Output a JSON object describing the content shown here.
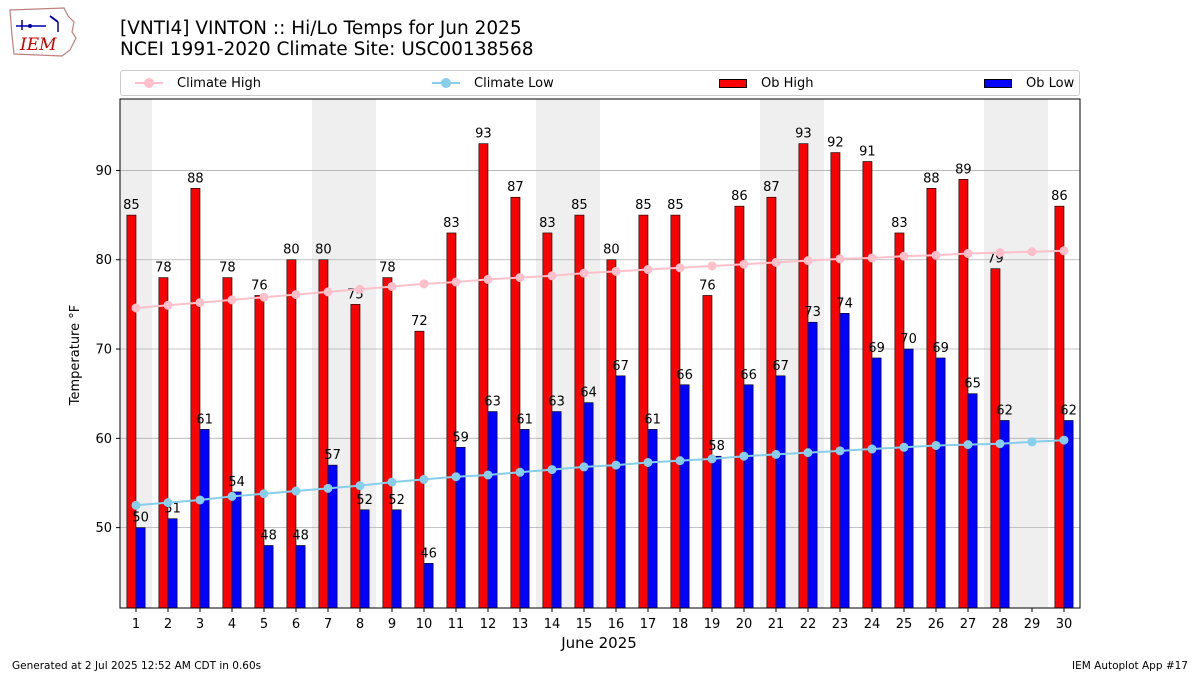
{
  "header": {
    "title_line1": "[VNTI4] VINTON :: Hi/Lo Temps for Jun 2025",
    "title_line2": "NCEI 1991-2020 Climate Site: USC00138568"
  },
  "logo": {
    "text": "IEM"
  },
  "footer": {
    "left": "Generated at 2 Jul 2025 12:52 AM CDT in 0.60s",
    "right": "IEM Autoplot App #17"
  },
  "colors": {
    "ob_high": "#ff0000",
    "ob_low": "#0000ff",
    "climate_high": "#ffc0cb",
    "climate_low": "#87ceeb",
    "weekend_shade": "#efefef",
    "grid": "#b0b0b0"
  },
  "chart_data": {
    "type": "bar",
    "xlabel": "June 2025",
    "ylabel": "Temperature $^\\circ$F",
    "ylim": [
      41,
      98
    ],
    "yticks": [
      50,
      60,
      70,
      80,
      90
    ],
    "grid": "horizontal",
    "legend_position": "top",
    "categories": [
      1,
      2,
      3,
      4,
      5,
      6,
      7,
      8,
      9,
      10,
      11,
      12,
      13,
      14,
      15,
      16,
      17,
      18,
      19,
      20,
      21,
      22,
      23,
      24,
      25,
      26,
      27,
      28,
      29,
      30
    ],
    "shaded_days": [
      1,
      7,
      8,
      14,
      15,
      21,
      22,
      28,
      29
    ],
    "series": [
      {
        "name": "Climate High",
        "kind": "line",
        "values": [
          74.6,
          74.9,
          75.2,
          75.5,
          75.8,
          76.1,
          76.4,
          76.7,
          77.0,
          77.3,
          77.5,
          77.8,
          78.0,
          78.2,
          78.5,
          78.7,
          78.9,
          79.1,
          79.3,
          79.5,
          79.7,
          79.9,
          80.1,
          80.2,
          80.4,
          80.5,
          80.7,
          80.8,
          80.9,
          81.0
        ]
      },
      {
        "name": "Climate Low",
        "kind": "line",
        "values": [
          52.5,
          52.8,
          53.1,
          53.5,
          53.8,
          54.1,
          54.4,
          54.7,
          55.1,
          55.4,
          55.7,
          55.9,
          56.2,
          56.5,
          56.8,
          57.0,
          57.3,
          57.5,
          57.7,
          58.0,
          58.2,
          58.4,
          58.6,
          58.8,
          59.0,
          59.2,
          59.3,
          59.4,
          59.6,
          59.8
        ]
      },
      {
        "name": "Ob High",
        "kind": "bar",
        "values": [
          85,
          78,
          88,
          78,
          76,
          80,
          80,
          75,
          78,
          72,
          83,
          93,
          87,
          83,
          85,
          80,
          85,
          85,
          76,
          86,
          87,
          93,
          92,
          91,
          83,
          88,
          89,
          79,
          null,
          86
        ]
      },
      {
        "name": "Ob Low",
        "kind": "bar",
        "values": [
          50,
          51,
          61,
          54,
          48,
          48,
          57,
          52,
          52,
          46,
          59,
          63,
          61,
          63,
          64,
          67,
          61,
          66,
          58,
          66,
          67,
          73,
          74,
          69,
          70,
          69,
          65,
          62,
          null,
          62
        ]
      }
    ]
  }
}
